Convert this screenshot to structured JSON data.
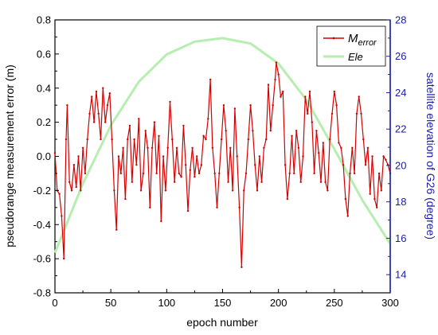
{
  "chart_data": {
    "type": "line",
    "xlabel": "epoch number",
    "ylabel_left": "pseudorange measurement error (m)",
    "ylabel_right": "satellite elevation of G26 (degree)",
    "xlim": [
      0,
      300
    ],
    "ylim_left": [
      -0.8,
      0.8
    ],
    "ylim_right": [
      13,
      28
    ],
    "x_ticks": [
      "0",
      "50",
      "100",
      "150",
      "200",
      "250",
      "300"
    ],
    "y_left_ticks": [
      "-0.8",
      "-0.6",
      "-0.4",
      "-0.2",
      "0.0",
      "0.2",
      "0.4",
      "0.6",
      "0.8"
    ],
    "y_right_ticks": [
      "14",
      "16",
      "18",
      "20",
      "22",
      "24",
      "26",
      "28"
    ],
    "grid": false,
    "legend_position": "top-right",
    "colors": {
      "error": "#d40000",
      "elevation": "#b6eeb0",
      "right_axis": "#1a1aaa"
    },
    "series": [
      {
        "name_main": "M",
        "name_sub": "error",
        "axis": "left",
        "points": [
          [
            0,
            0.02
          ],
          [
            2,
            -0.2
          ],
          [
            4,
            -0.22
          ],
          [
            6,
            -0.35
          ],
          [
            8,
            -0.6
          ],
          [
            10,
            0.1
          ],
          [
            11,
            0.3
          ],
          [
            13,
            -0.15
          ],
          [
            15,
            -0.2
          ],
          [
            17,
            -0.05
          ],
          [
            19,
            -0.18
          ],
          [
            21,
            0.0
          ],
          [
            23,
            -0.2
          ],
          [
            25,
            0.05
          ],
          [
            27,
            -0.1
          ],
          [
            29,
            0.1
          ],
          [
            31,
            0.25
          ],
          [
            33,
            0.35
          ],
          [
            35,
            0.2
          ],
          [
            37,
            0.38
          ],
          [
            39,
            0.25
          ],
          [
            41,
            0.1
          ],
          [
            43,
            0.4
          ],
          [
            45,
            0.2
          ],
          [
            47,
            0.3
          ],
          [
            49,
            0.37
          ],
          [
            51,
            0.1
          ],
          [
            53,
            -0.2
          ],
          [
            55,
            -0.43
          ],
          [
            57,
            0.0
          ],
          [
            59,
            -0.1
          ],
          [
            61,
            0.05
          ],
          [
            63,
            -0.25
          ],
          [
            65,
            0.1
          ],
          [
            67,
            0.18
          ],
          [
            69,
            -0.15
          ],
          [
            71,
            0.1
          ],
          [
            73,
            -0.05
          ],
          [
            75,
            0.22
          ],
          [
            77,
            -0.2
          ],
          [
            79,
            -0.1
          ],
          [
            81,
            0.15
          ],
          [
            83,
            0.05
          ],
          [
            85,
            -0.3
          ],
          [
            87,
            0.05
          ],
          [
            89,
            0.2
          ],
          [
            91,
            -0.1
          ],
          [
            93,
            0.12
          ],
          [
            95,
            -0.38
          ],
          [
            97,
            0.0
          ],
          [
            99,
            -0.2
          ],
          [
            101,
            0.05
          ],
          [
            103,
            0.32
          ],
          [
            105,
            0.1
          ],
          [
            107,
            -0.15
          ],
          [
            109,
            0.05
          ],
          [
            111,
            -0.1
          ],
          [
            113,
            -0.12
          ],
          [
            115,
            0.18
          ],
          [
            117,
            -0.05
          ],
          [
            119,
            -0.32
          ],
          [
            121,
            -0.08
          ],
          [
            123,
            0.05
          ],
          [
            125,
            -0.12
          ],
          [
            127,
            0.0
          ],
          [
            129,
            -0.1
          ],
          [
            131,
            -0.05
          ],
          [
            133,
            0.12
          ],
          [
            135,
            0.1
          ],
          [
            137,
            0.22
          ],
          [
            139,
            0.45
          ],
          [
            141,
            0.05
          ],
          [
            143,
            -0.1
          ],
          [
            145,
            -0.3
          ],
          [
            147,
            -0.1
          ],
          [
            149,
            0.1
          ],
          [
            151,
            0.3
          ],
          [
            153,
            0.15
          ],
          [
            155,
            -0.15
          ],
          [
            157,
            0.05
          ],
          [
            159,
            -0.2
          ],
          [
            161,
            0.28
          ],
          [
            163,
            0.0
          ],
          [
            165,
            -0.3
          ],
          [
            167,
            -0.65
          ],
          [
            169,
            -0.2
          ],
          [
            171,
            -0.1
          ],
          [
            173,
            0.1
          ],
          [
            175,
            0.3
          ],
          [
            177,
            0.15
          ],
          [
            179,
            -0.05
          ],
          [
            181,
            -0.2
          ],
          [
            183,
            0.0
          ],
          [
            185,
            -0.15
          ],
          [
            187,
            0.05
          ],
          [
            189,
            0.1
          ],
          [
            191,
            0.42
          ],
          [
            193,
            0.15
          ],
          [
            195,
            0.3
          ],
          [
            197,
            0.45
          ],
          [
            198,
            0.55
          ],
          [
            200,
            0.48
          ],
          [
            202,
            0.35
          ],
          [
            204,
            0.38
          ],
          [
            206,
            -0.05
          ],
          [
            208,
            -0.25
          ],
          [
            210,
            -0.1
          ],
          [
            212,
            0.12
          ],
          [
            214,
            -0.1
          ],
          [
            216,
            0.15
          ],
          [
            218,
            0.05
          ],
          [
            220,
            -0.15
          ],
          [
            222,
            0.0
          ],
          [
            224,
            0.35
          ],
          [
            226,
            0.25
          ],
          [
            228,
            0.38
          ],
          [
            230,
            0.2
          ],
          [
            232,
            -0.1
          ],
          [
            234,
            0.15
          ],
          [
            236,
            0.02
          ],
          [
            238,
            -0.15
          ],
          [
            240,
            0.08
          ],
          [
            242,
            -0.15
          ],
          [
            244,
            -0.2
          ],
          [
            246,
            0.1
          ],
          [
            248,
            0.25
          ],
          [
            250,
            0.38
          ],
          [
            252,
            0.3
          ],
          [
            254,
            0.08
          ],
          [
            256,
            0.05
          ],
          [
            258,
            -0.05
          ],
          [
            260,
            -0.25
          ],
          [
            262,
            -0.35
          ],
          [
            264,
            -0.1
          ],
          [
            266,
            0.05
          ],
          [
            268,
            -0.1
          ],
          [
            270,
            0.25
          ],
          [
            272,
            0.35
          ],
          [
            274,
            0.25
          ],
          [
            276,
            0.1
          ],
          [
            278,
            -0.05
          ],
          [
            280,
            0.05
          ],
          [
            282,
            -0.22
          ],
          [
            284,
            0.0
          ],
          [
            286,
            -0.25
          ],
          [
            288,
            -0.3
          ],
          [
            290,
            -0.1
          ],
          [
            292,
            -0.2
          ],
          [
            294,
            0.0
          ],
          [
            296,
            -0.02
          ],
          [
            298,
            -0.05
          ],
          [
            300,
            -0.1
          ]
        ]
      },
      {
        "name": "Ele",
        "axis": "right",
        "points": [
          [
            0,
            15.2
          ],
          [
            25,
            19.0
          ],
          [
            50,
            22.2
          ],
          [
            75,
            24.6
          ],
          [
            100,
            26.1
          ],
          [
            125,
            26.8
          ],
          [
            150,
            27.0
          ],
          [
            175,
            26.7
          ],
          [
            200,
            25.6
          ],
          [
            225,
            23.6
          ],
          [
            250,
            20.9
          ],
          [
            275,
            18.1
          ],
          [
            300,
            15.7
          ]
        ]
      }
    ]
  }
}
